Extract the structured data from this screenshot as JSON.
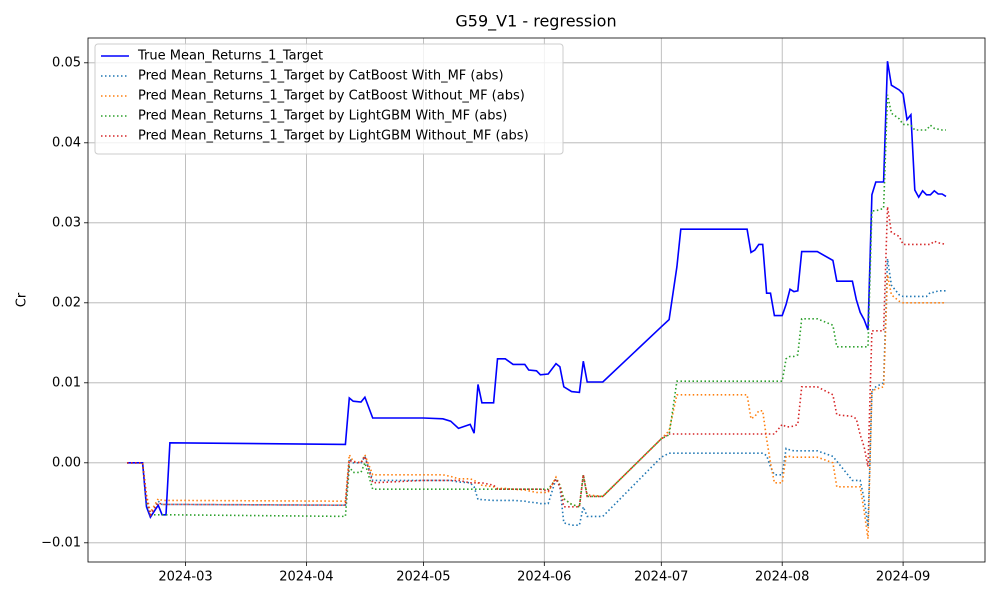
{
  "chart_data": {
    "type": "line",
    "title": "G59_V1 - regression",
    "ylabel": "Cr",
    "grid": true,
    "legend": "upper left",
    "xlim": [
      "2024-02-05",
      "2024-09-22"
    ],
    "xticks": [
      {
        "value": "2024-03-01",
        "label": "2024-03"
      },
      {
        "value": "2024-04-01",
        "label": "2024-04"
      },
      {
        "value": "2024-05-01",
        "label": "2024-05"
      },
      {
        "value": "2024-06-01",
        "label": "2024-06"
      },
      {
        "value": "2024-07-01",
        "label": "2024-07"
      },
      {
        "value": "2024-08-01",
        "label": "2024-08"
      },
      {
        "value": "2024-09-01",
        "label": "2024-09"
      }
    ],
    "ylim": [
      -0.0124,
      0.0531
    ],
    "yticks": [
      {
        "value": -0.01,
        "label": "−0.01"
      },
      {
        "value": 0,
        "label": "0.00"
      },
      0.01,
      0.02,
      0.03,
      0.04,
      0.05
    ],
    "x": [
      "2024-02-15",
      "2024-02-19",
      "2024-02-20",
      "2024-02-21",
      "2024-02-23",
      "2024-02-24",
      "2024-02-25",
      "2024-02-26",
      "2024-04-11",
      "2024-04-12",
      "2024-04-13",
      "2024-04-15",
      "2024-04-16",
      "2024-04-18",
      "2024-05-01",
      "2024-05-06",
      "2024-05-08",
      "2024-05-10",
      "2024-05-13",
      "2024-05-14",
      "2024-05-15",
      "2024-05-16",
      "2024-05-19",
      "2024-05-20",
      "2024-05-22",
      "2024-05-24",
      "2024-05-27",
      "2024-05-28",
      "2024-05-30",
      "2024-05-31",
      "2024-06-02",
      "2024-06-04",
      "2024-06-05",
      "2024-06-06",
      "2024-06-08",
      "2024-06-10",
      "2024-06-11",
      "2024-06-12",
      "2024-06-16",
      "2024-07-01",
      "2024-07-03",
      "2024-07-05",
      "2024-07-06",
      "2024-07-23",
      "2024-07-24",
      "2024-07-25",
      "2024-07-26",
      "2024-07-27",
      "2024-07-28",
      "2024-07-29",
      "2024-07-30",
      "2024-08-01",
      "2024-08-02",
      "2024-08-03",
      "2024-08-04",
      "2024-08-05",
      "2024-08-06",
      "2024-08-10",
      "2024-08-14",
      "2024-08-15",
      "2024-08-19",
      "2024-08-20",
      "2024-08-21",
      "2024-08-22",
      "2024-08-23",
      "2024-08-24",
      "2024-08-25",
      "2024-08-27",
      "2024-08-28",
      "2024-08-29",
      "2024-08-31",
      "2024-09-01",
      "2024-09-02",
      "2024-09-03",
      "2024-09-04",
      "2024-09-05",
      "2024-09-06",
      "2024-09-07",
      "2024-09-08",
      "2024-09-09",
      "2024-09-10",
      "2024-09-11",
      "2024-09-12"
    ],
    "series": [
      {
        "name": "True Mean_Returns_1_Target",
        "color": "#0000ff",
        "linestyle": "solid",
        "values": [
          0,
          0,
          -0.0055,
          -0.0068,
          -0.0053,
          -0.0065,
          -0.0065,
          0.0025,
          0.0023,
          0.0081,
          0.0077,
          0.0076,
          0.0082,
          0.0056,
          0.0056,
          0.0055,
          0.0052,
          0.0043,
          0.0048,
          0.0037,
          0.0098,
          0.0075,
          0.0075,
          0.013,
          0.013,
          0.0123,
          0.0123,
          0.0116,
          0.0115,
          0.011,
          0.0111,
          0.0124,
          0.012,
          0.0095,
          0.0089,
          0.0088,
          0.0127,
          0.0101,
          0.0101,
          0.017,
          0.0179,
          0.0245,
          0.0292,
          0.0292,
          0.0263,
          0.0266,
          0.0273,
          0.0273,
          0.0212,
          0.0212,
          0.0184,
          0.0184,
          0.0198,
          0.0217,
          0.0214,
          0.0215,
          0.0264,
          0.0264,
          0.0253,
          0.0227,
          0.0227,
          0.0204,
          0.0188,
          0.0179,
          0.0166,
          0.0335,
          0.0351,
          0.0351,
          0.0502,
          0.0472,
          0.0466,
          0.0461,
          0.0429,
          0.0435,
          0.0341,
          0.0332,
          0.034,
          0.0335,
          0.0335,
          0.034,
          0.0336,
          0.0336,
          0.0333
        ]
      },
      {
        "name": "Pred Mean_Returns_1_Target by CatBoost With_MF (abs)",
        "color": "#1f77b4",
        "linestyle": "dotted",
        "values": [
          0,
          0,
          -0.0045,
          -0.0065,
          -0.0048,
          -0.0052,
          -0.0052,
          -0.0052,
          -0.0053,
          0.0005,
          0,
          0,
          0.0008,
          -0.0022,
          -0.0022,
          -0.0022,
          -0.0022,
          -0.0024,
          -0.0025,
          -0.003,
          -0.0046,
          -0.0046,
          -0.0047,
          -0.0047,
          -0.0047,
          -0.0047,
          -0.0048,
          -0.0049,
          -0.005,
          -0.0051,
          -0.0051,
          -0.002,
          -0.003,
          -0.0075,
          -0.0078,
          -0.0078,
          -0.0055,
          -0.0067,
          -0.0067,
          0.0007,
          0.0012,
          0.0012,
          0.0012,
          0.0012,
          0.0012,
          0.0012,
          0.0012,
          0.0012,
          0.0009,
          -0.0005,
          -0.0015,
          -0.0015,
          0.0018,
          0.0016,
          0.0015,
          0.0015,
          0.0015,
          0.0015,
          0.0008,
          0.0002,
          -0.0022,
          -0.0022,
          -0.0022,
          -0.0045,
          -0.008,
          0.009,
          0.0095,
          0.01,
          0.0255,
          0.0222,
          0.021,
          0.0208,
          0.0208,
          0.0208,
          0.0208,
          0.0208,
          0.0208,
          0.0208,
          0.0213,
          0.0213,
          0.0215,
          0.0215,
          0.0215
        ]
      },
      {
        "name": "Pred Mean_Returns_1_Target by CatBoost Without_MF (abs)",
        "color": "#ff7f0e",
        "linestyle": "dotted",
        "values": [
          0,
          0,
          -0.004,
          -0.0062,
          -0.0045,
          -0.0047,
          -0.0047,
          -0.0047,
          -0.0048,
          0.001,
          0.0002,
          0,
          0.001,
          -0.0015,
          -0.0015,
          -0.0015,
          -0.0017,
          -0.002,
          -0.002,
          -0.0022,
          -0.0025,
          -0.0028,
          -0.003,
          -0.0032,
          -0.0032,
          -0.0033,
          -0.0034,
          -0.0035,
          -0.0037,
          -0.0037,
          -0.0037,
          -0.0018,
          -0.0028,
          -0.0045,
          -0.0052,
          -0.0055,
          -0.0015,
          -0.004,
          -0.0042,
          0.003,
          0.004,
          0.0085,
          0.0085,
          0.0085,
          0.0055,
          0.0058,
          0.0065,
          0.0065,
          0.003,
          0,
          -0.0025,
          -0.0025,
          0.0008,
          0.0008,
          0.0007,
          0.0007,
          0.0007,
          0.0007,
          0,
          -0.003,
          -0.003,
          -0.003,
          -0.003,
          -0.006,
          -0.0095,
          0.009,
          0.0092,
          0.0095,
          0.0235,
          0.021,
          0.0202,
          0.02,
          0.02,
          0.02,
          0.02,
          0.02,
          0.02,
          0.02,
          0.02,
          0.02,
          0.02,
          0.02,
          0.02
        ]
      },
      {
        "name": "Pred Mean_Returns_1_Target by LightGBM With_MF (abs)",
        "color": "#2ca02c",
        "linestyle": "dotted",
        "values": [
          0,
          0,
          -0.005,
          -0.0065,
          -0.0065,
          -0.0065,
          -0.0065,
          -0.0065,
          -0.0067,
          -0.0005,
          -0.0012,
          -0.0012,
          0,
          -0.0033,
          -0.0033,
          -0.0033,
          -0.0033,
          -0.0033,
          -0.0033,
          -0.0033,
          -0.0033,
          -0.0033,
          -0.0033,
          -0.0033,
          -0.0033,
          -0.0033,
          -0.0033,
          -0.0033,
          -0.0033,
          -0.0033,
          -0.0033,
          -0.002,
          -0.0028,
          -0.0045,
          -0.0052,
          -0.0055,
          -0.0015,
          -0.0042,
          -0.0042,
          0.003,
          0.0035,
          0.0102,
          0.0102,
          0.0102,
          0.0102,
          0.0102,
          0.0102,
          0.0102,
          0.0102,
          0.0102,
          0.0102,
          0.0102,
          0.013,
          0.0133,
          0.0133,
          0.0135,
          0.018,
          0.018,
          0.0172,
          0.0145,
          0.0145,
          0.0145,
          0.0145,
          0.0145,
          0.0145,
          0.0315,
          0.0315,
          0.0318,
          0.046,
          0.0437,
          0.043,
          0.0423,
          0.0423,
          0.0422,
          0.0416,
          0.0416,
          0.0416,
          0.0416,
          0.0422,
          0.0418,
          0.0417,
          0.0416,
          0.0416
        ]
      },
      {
        "name": "Pred Mean_Returns_1_Target by LightGBM Without_MF (abs)",
        "color": "#d62728",
        "linestyle": "dotted",
        "values": [
          0,
          0,
          -0.0045,
          -0.0065,
          -0.005,
          -0.0052,
          -0.0052,
          -0.0052,
          -0.0053,
          0.0003,
          0.0001,
          0,
          0.0008,
          -0.0025,
          -0.0022,
          -0.0022,
          -0.0022,
          -0.0022,
          -0.0025,
          -0.0025,
          -0.0025,
          -0.0025,
          -0.0028,
          -0.0033,
          -0.0033,
          -0.0033,
          -0.0033,
          -0.0033,
          -0.0033,
          -0.0033,
          -0.0035,
          -0.002,
          -0.003,
          -0.0055,
          -0.0055,
          -0.0055,
          -0.0015,
          -0.0042,
          -0.0042,
          0.003,
          0.0036,
          0.0036,
          0.0036,
          0.0036,
          0.0036,
          0.0036,
          0.0036,
          0.0036,
          0.0036,
          0.0036,
          0.0036,
          0.0048,
          0.0045,
          0.0045,
          0.0046,
          0.0048,
          0.0095,
          0.0095,
          0.0085,
          0.006,
          0.0058,
          0.0055,
          0.0035,
          0.002,
          -0.0005,
          0.0165,
          0.0165,
          0.0165,
          0.032,
          0.0288,
          0.0283,
          0.0273,
          0.0273,
          0.0273,
          0.0273,
          0.0273,
          0.0273,
          0.0273,
          0.0273,
          0.0277,
          0.0275,
          0.0274,
          0.0273
        ]
      }
    ]
  }
}
